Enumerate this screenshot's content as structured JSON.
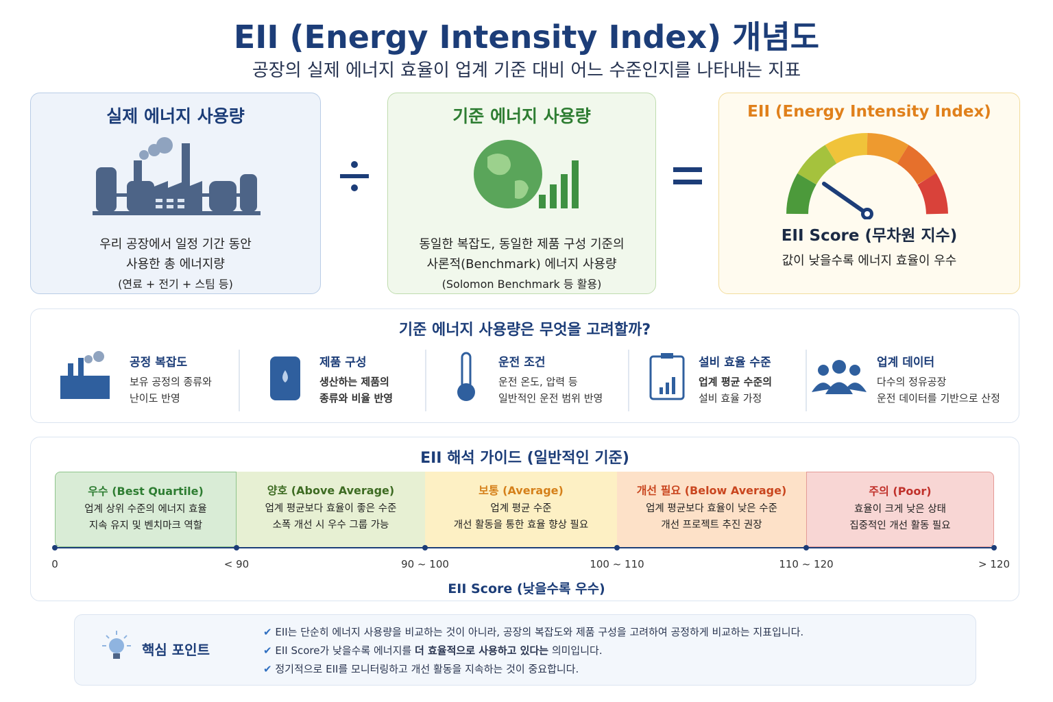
{
  "header": {
    "title": "EII (Energy Intensity Index) 개념도",
    "subtitle": "공장의 실제 에너지 효율이 업계 기준 대비 어느 수준인지를 나타내는 지표"
  },
  "formula": {
    "actual": {
      "title": "실제 에너지 사용량",
      "lines": [
        "우리 공장에서 일정 기간 동안",
        "사용한 총 에너지량",
        "(연료 + 전기 + 스팀 등)"
      ]
    },
    "standard": {
      "title": "기준 에너지 사용량",
      "lines": [
        "동일한 복잡도, 동일한 제품 구성 기준의",
        "사론적(Benchmark) 에너지 사용량",
        "(Solomon Benchmark 등 활용)"
      ]
    },
    "result": {
      "title": "EII (Energy Intensity Index)",
      "score_label": "EII Score (무차원 지수)",
      "note": "값이 낮을수록 에너지 효율이 우수"
    }
  },
  "factors": {
    "title": "기준 에너지 사용량은 무엇을 고려할까?",
    "items": [
      {
        "title": "공정 복잡도",
        "lines": [
          "보유 공정의 종류와",
          "난이도 반영"
        ]
      },
      {
        "title": "제품 구성",
        "lines": [
          "생산하는 제품의",
          "종류와 비율 반영"
        ]
      },
      {
        "title": "운전 조건",
        "lines": [
          "운전 온도, 압력 등",
          "일반적인 운전 범위 반영"
        ]
      },
      {
        "title": "설비 효율 수준",
        "lines": [
          "업계 평균 수준의",
          "설비 효율 가정"
        ]
      },
      {
        "title": "업계 데이터",
        "lines": [
          "다수의 정유공장",
          "운전 데이터를 기반으로 산정"
        ]
      }
    ]
  },
  "guide": {
    "title": "EII 해석 가이드 (일반적인 기준)",
    "bands": [
      {
        "title": "우수 (Best Quartile)",
        "lines": [
          "업계 상위 수준의 에너지 효율",
          "지속 유지 및 벤치마크 역할"
        ]
      },
      {
        "title": "양호 (Above Average)",
        "lines": [
          "업계 평균보다 효율이 좋은 수준",
          "소폭 개선 시 우수 그룹 가능"
        ]
      },
      {
        "title": "보통 (Average)",
        "lines": [
          "업계 평균 수준",
          "개선 활동을 통한 효율 향상 필요"
        ]
      },
      {
        "title": "개선 필요 (Below Average)",
        "lines": [
          "업계 평균보다 효율이 낮은 수준",
          "개선 프로젝트 추진 권장"
        ]
      },
      {
        "title": "주의 (Poor)",
        "lines": [
          "효율이 크게 낮은 상태",
          "집중적인 개선 활동 필요"
        ]
      }
    ],
    "scale_labels": [
      "0",
      "< 90",
      "90 ~ 100",
      "100 ~ 110",
      "110 ~ 120",
      "> 120"
    ],
    "axis_label": "EII Score (낮을수록 우수)"
  },
  "key_points": {
    "title": "핵심 포인트",
    "items": [
      [
        "EII는 단순히 에너지 사용량을 비교하는 것이 아니라, 공장의 복잡도와 제품 구성을 고려하여 공정하게 비교하는 지표입니다."
      ],
      [
        "EII Score가 낮을수록 에너지를 ",
        "더 효율적으로 사용하고 있다는",
        " 의미입니다."
      ],
      [
        "정기적으로 EII를 모니터링하고 개선 활동을 지속하는 것이 중요합니다."
      ]
    ]
  }
}
